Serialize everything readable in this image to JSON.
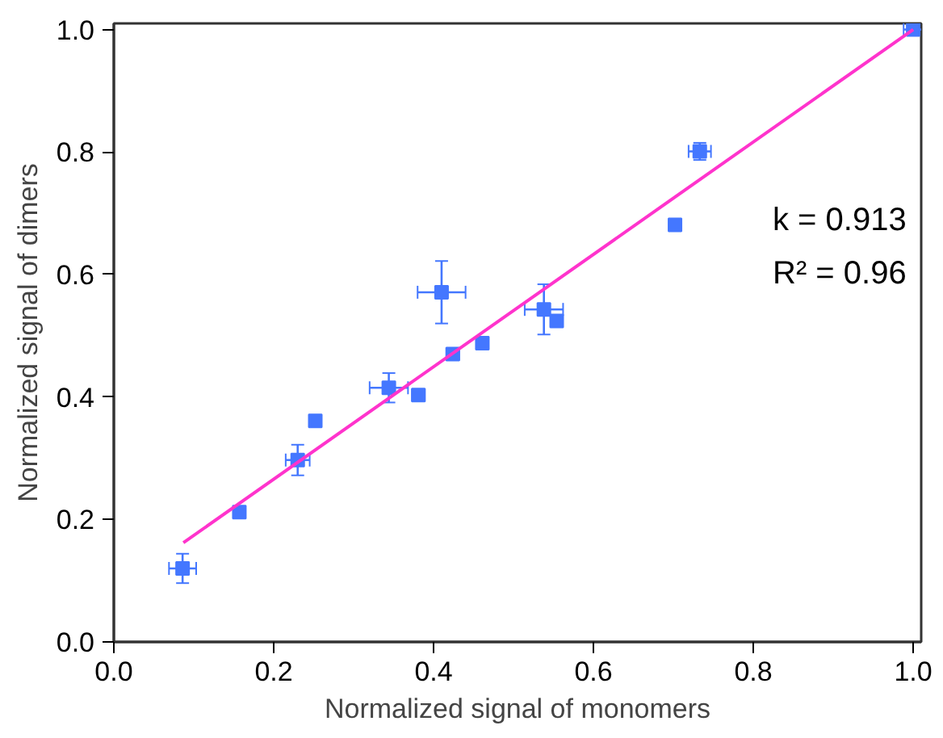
{
  "chart_data": {
    "type": "scatter",
    "xlabel": "Normalized signal of monomers",
    "ylabel": "Normalized signal of dimers",
    "xlim": [
      0,
      1.01
    ],
    "ylim": [
      0,
      1.01
    ],
    "xticks": [
      {
        "value": 0,
        "label": "0.0"
      },
      0.2,
      0.4,
      0.6,
      0.8,
      {
        "value": 1,
        "label": "1.0"
      }
    ],
    "yticks": [
      {
        "value": 0,
        "label": "0.0"
      },
      0.2,
      0.4,
      0.6,
      0.8,
      {
        "value": 1,
        "label": "1.0"
      }
    ],
    "grid": false,
    "series": [
      {
        "color": "#4477ff",
        "marker": "square",
        "x": [
          0.086,
          0.157,
          0.23,
          0.252,
          0.344,
          0.381,
          0.41,
          0.424,
          0.461,
          0.538,
          0.554,
          0.702,
          0.733,
          1.0
        ],
        "values": [
          0.12,
          0.212,
          0.297,
          0.361,
          0.415,
          0.403,
          0.571,
          0.47,
          0.488,
          0.543,
          0.524,
          0.681,
          0.801,
          1.0
        ],
        "xerrors": [
          0.017,
          null,
          0.015,
          0.005,
          0.024,
          0.008,
          0.03,
          0.008,
          0.006,
          0.024,
          null,
          null,
          0.014,
          0.012
        ],
        "errors": [
          0.024,
          null,
          0.025,
          null,
          0.024,
          null,
          0.051,
          null,
          null,
          0.041,
          null,
          null,
          0.014,
          null
        ]
      },
      {
        "type": "line",
        "marker": "none",
        "color": "#ff33cc",
        "x": [
          0.087,
          1.0
        ],
        "values": [
          0.162,
          1.0
        ]
      }
    ],
    "annotations": [
      "k = 0.913",
      "R² = 0.96"
    ]
  }
}
